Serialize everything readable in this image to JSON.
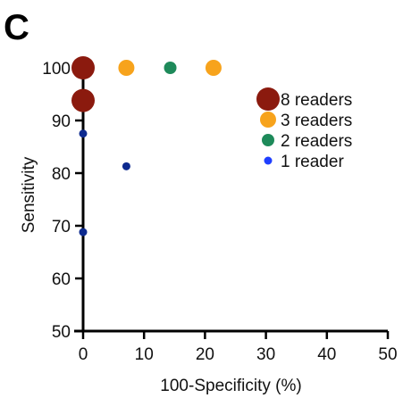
{
  "panel_label": "C",
  "chart_data": {
    "type": "scatter",
    "xlabel": "100-Specificity (%)",
    "ylabel": "Sensitivity",
    "xlim": [
      0,
      50
    ],
    "ylim": [
      50,
      100
    ],
    "x_ticks": [
      0,
      10,
      20,
      30,
      40,
      50
    ],
    "y_ticks": [
      50,
      60,
      70,
      80,
      90,
      100
    ],
    "grid": false,
    "legend_position": "right",
    "legend": [
      {
        "label": "8 readers",
        "readers": 8,
        "color": "#8B1A0E"
      },
      {
        "label": "3 readers",
        "readers": 3,
        "color": "#F7A31C"
      },
      {
        "label": "2 readers",
        "readers": 2,
        "color": "#1E8A5A"
      },
      {
        "label": "1 reader",
        "readers": 1,
        "color": "#1F3FFF"
      }
    ],
    "points": [
      {
        "x": 0,
        "y": 100,
        "readers": 8,
        "color": "#8B1A0E"
      },
      {
        "x": 0,
        "y": 93.8,
        "readers": 8,
        "color": "#8B1A0E"
      },
      {
        "x": 7.1,
        "y": 100,
        "readers": 3,
        "color": "#F7A31C"
      },
      {
        "x": 21.4,
        "y": 100,
        "readers": 3,
        "color": "#F7A31C"
      },
      {
        "x": 14.3,
        "y": 100,
        "readers": 2,
        "color": "#1E8A5A"
      },
      {
        "x": 0,
        "y": 87.5,
        "readers": 1,
        "color": "#0D2A8F"
      },
      {
        "x": 7.1,
        "y": 81.3,
        "readers": 1,
        "color": "#0D2A8F"
      },
      {
        "x": 0,
        "y": 68.8,
        "readers": 1,
        "color": "#0D2A8F"
      }
    ]
  }
}
